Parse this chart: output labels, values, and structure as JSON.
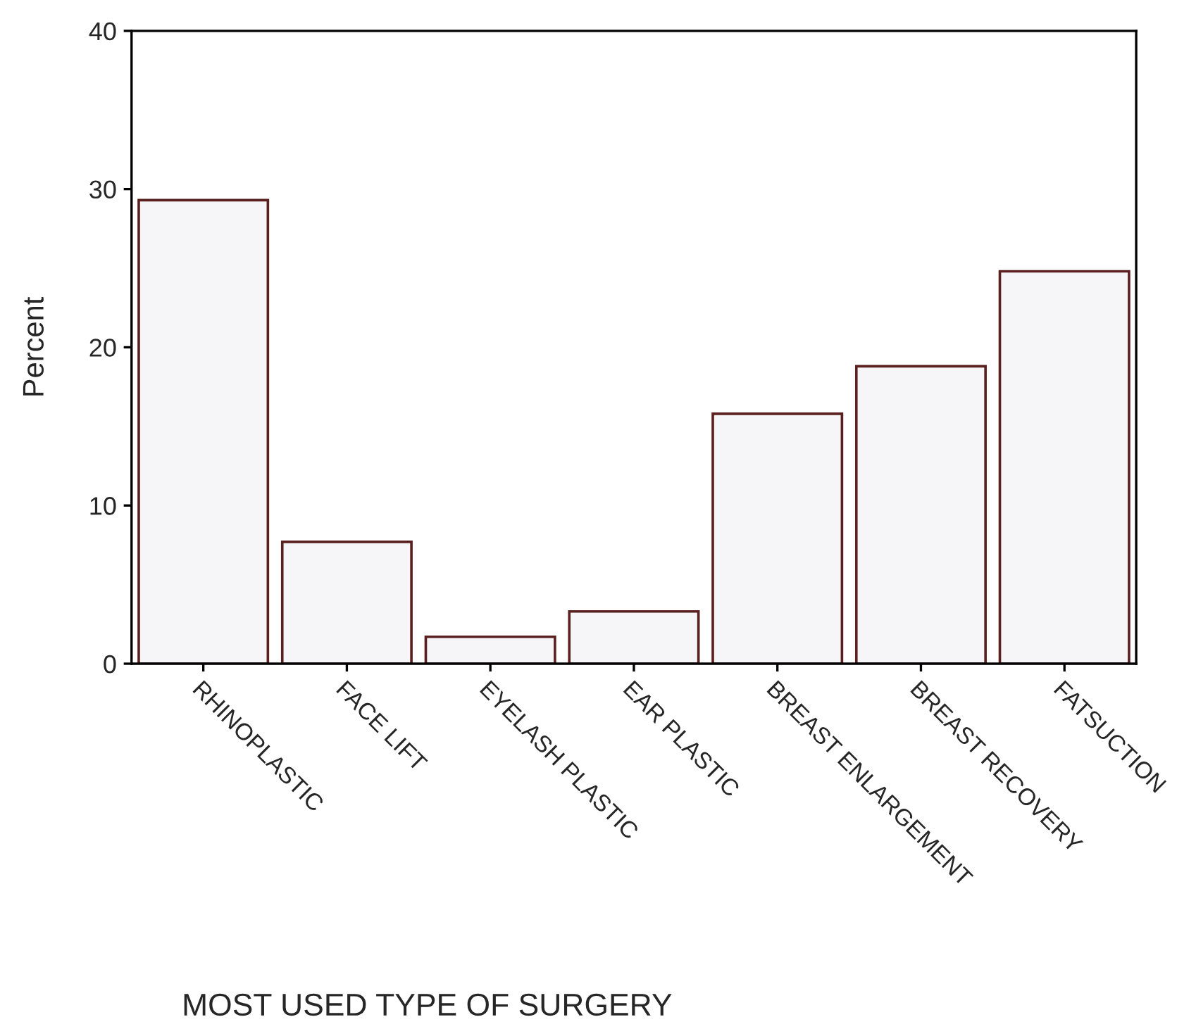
{
  "chart_data": {
    "type": "bar",
    "xlabel": "MOST USED TYPE OF SURGERY",
    "ylabel": "Percent",
    "categories": [
      "RHINOPLASTIC",
      "FACE LIFT",
      "EYELASH PLASTIC",
      "EAR PLASTIC",
      "BREAST ENLARGEMENT",
      "BREAST RECOVERY",
      "FATSUCTION"
    ],
    "values": [
      29.3,
      7.7,
      1.7,
      3.3,
      15.8,
      18.8,
      24.8
    ],
    "color": "#f6f6f8",
    "ylim": [
      0,
      40
    ],
    "yticks": [
      0,
      10,
      20,
      30,
      40
    ],
    "grid": false
  }
}
